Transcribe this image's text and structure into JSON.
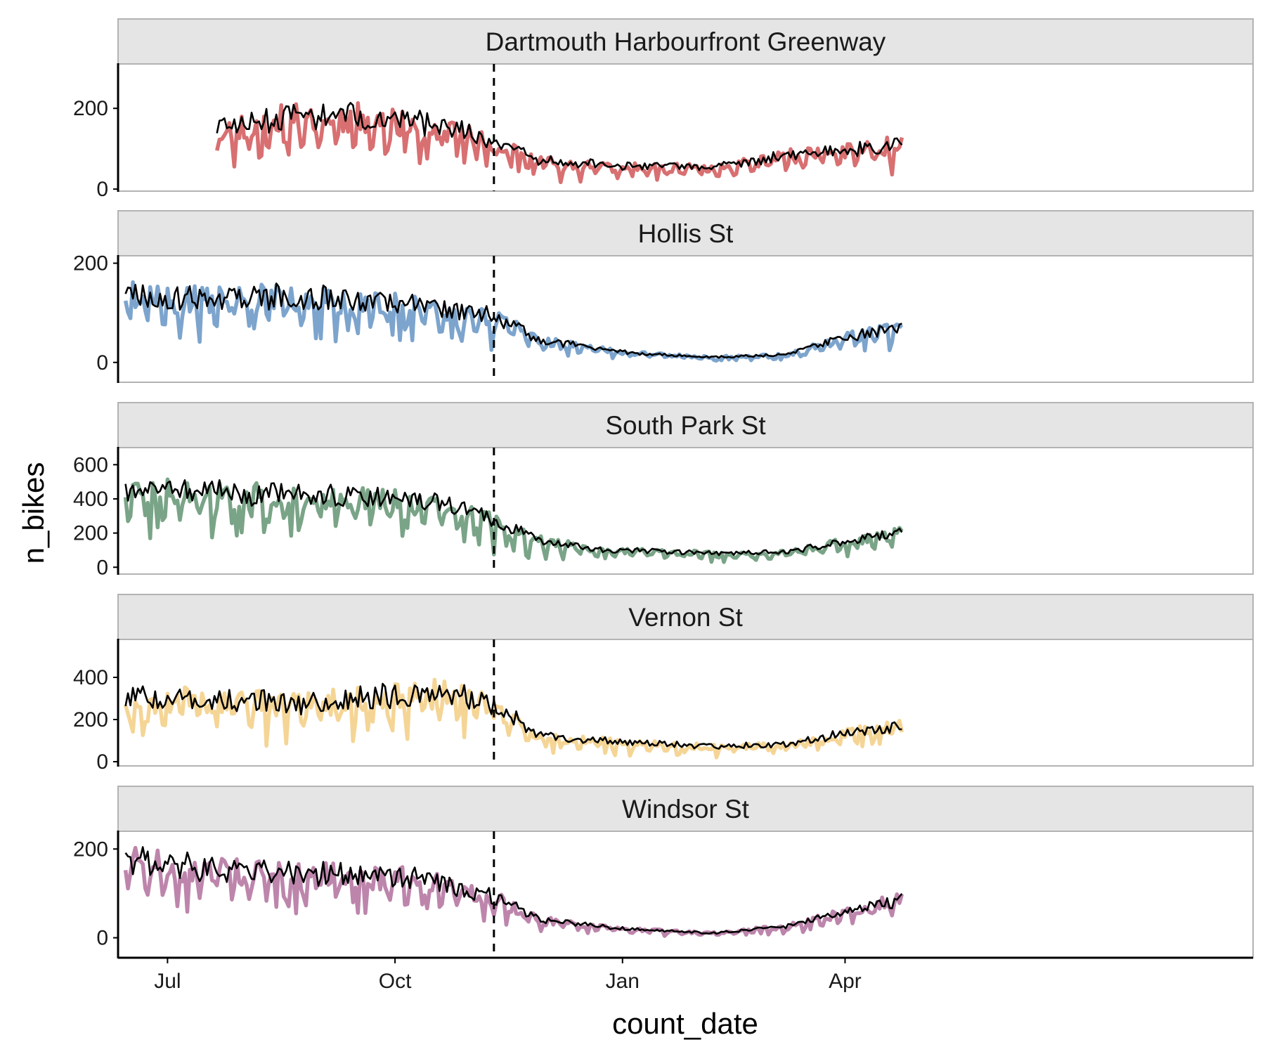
{
  "chart_data": {
    "type": "line",
    "xlabel": "count_date",
    "ylabel": "n_bikes",
    "x_range_days": [
      -20,
      439
    ],
    "x_ticks": [
      {
        "label": "Jul",
        "day": 0
      },
      {
        "label": "Oct",
        "day": 92
      },
      {
        "label": "Jan",
        "day": 184
      },
      {
        "label": "Apr",
        "day": 274
      }
    ],
    "reference_line": {
      "day": 132,
      "style": "dashed"
    },
    "actual_line_color": "#000000",
    "panels": [
      {
        "name": "Dartmouth Harbourfront Greenway",
        "color": "#d45f62",
        "ylim": [
          -5,
          310
        ],
        "yticks": [
          0,
          200
        ],
        "start_day": 20,
        "end_day": 297,
        "noise": 0.22,
        "seed": 11,
        "points": [
          [
            20,
            150
          ],
          [
            50,
            175
          ],
          [
            80,
            175
          ],
          [
            100,
            160
          ],
          [
            120,
            140
          ],
          [
            132,
            110
          ],
          [
            150,
            70
          ],
          [
            184,
            55
          ],
          [
            220,
            50
          ],
          [
            250,
            80
          ],
          [
            275,
            95
          ],
          [
            297,
            110
          ]
        ]
      },
      {
        "name": "Hollis St",
        "color": "#6e9ac8",
        "ylim": [
          -40,
          215
        ],
        "yticks": [
          0,
          200
        ],
        "start_day": -17,
        "end_day": 297,
        "noise": 0.22,
        "seed": 23,
        "points": [
          [
            -17,
            140
          ],
          [
            0,
            125
          ],
          [
            50,
            130
          ],
          [
            100,
            115
          ],
          [
            132,
            90
          ],
          [
            150,
            45
          ],
          [
            184,
            20
          ],
          [
            220,
            10
          ],
          [
            250,
            15
          ],
          [
            275,
            50
          ],
          [
            297,
            70
          ]
        ]
      },
      {
        "name": "South Park St",
        "color": "#6b9a7a",
        "ylim": [
          -40,
          700
        ],
        "yticks": [
          0,
          200,
          400,
          600
        ],
        "start_day": -17,
        "end_day": 297,
        "noise": 0.18,
        "seed": 37,
        "points": [
          [
            -17,
            450
          ],
          [
            30,
            420
          ],
          [
            80,
            400
          ],
          [
            110,
            360
          ],
          [
            132,
            270
          ],
          [
            150,
            160
          ],
          [
            175,
            100
          ],
          [
            220,
            80
          ],
          [
            250,
            85
          ],
          [
            275,
            150
          ],
          [
            297,
            200
          ]
        ]
      },
      {
        "name": "Vernon St",
        "color": "#f4d089",
        "ylim": [
          -20,
          580
        ],
        "yticks": [
          0,
          200,
          400
        ],
        "start_day": -17,
        "end_day": 297,
        "noise": 0.22,
        "seed": 53,
        "points": [
          [
            -17,
            300
          ],
          [
            30,
            280
          ],
          [
            60,
            270
          ],
          [
            80,
            300
          ],
          [
            110,
            320
          ],
          [
            132,
            270
          ],
          [
            150,
            120
          ],
          [
            184,
            90
          ],
          [
            220,
            70
          ],
          [
            250,
            80
          ],
          [
            275,
            130
          ],
          [
            297,
            170
          ]
        ]
      },
      {
        "name": "Windsor St",
        "color": "#b678a3",
        "ylim": [
          -45,
          240
        ],
        "yticks": [
          0,
          200
        ],
        "start_day": -17,
        "end_day": 297,
        "noise": 0.22,
        "seed": 71,
        "points": [
          [
            -17,
            170
          ],
          [
            30,
            145
          ],
          [
            70,
            140
          ],
          [
            100,
            130
          ],
          [
            132,
            90
          ],
          [
            150,
            40
          ],
          [
            184,
            20
          ],
          [
            220,
            10
          ],
          [
            250,
            25
          ],
          [
            275,
            60
          ],
          [
            297,
            85
          ]
        ]
      }
    ]
  }
}
